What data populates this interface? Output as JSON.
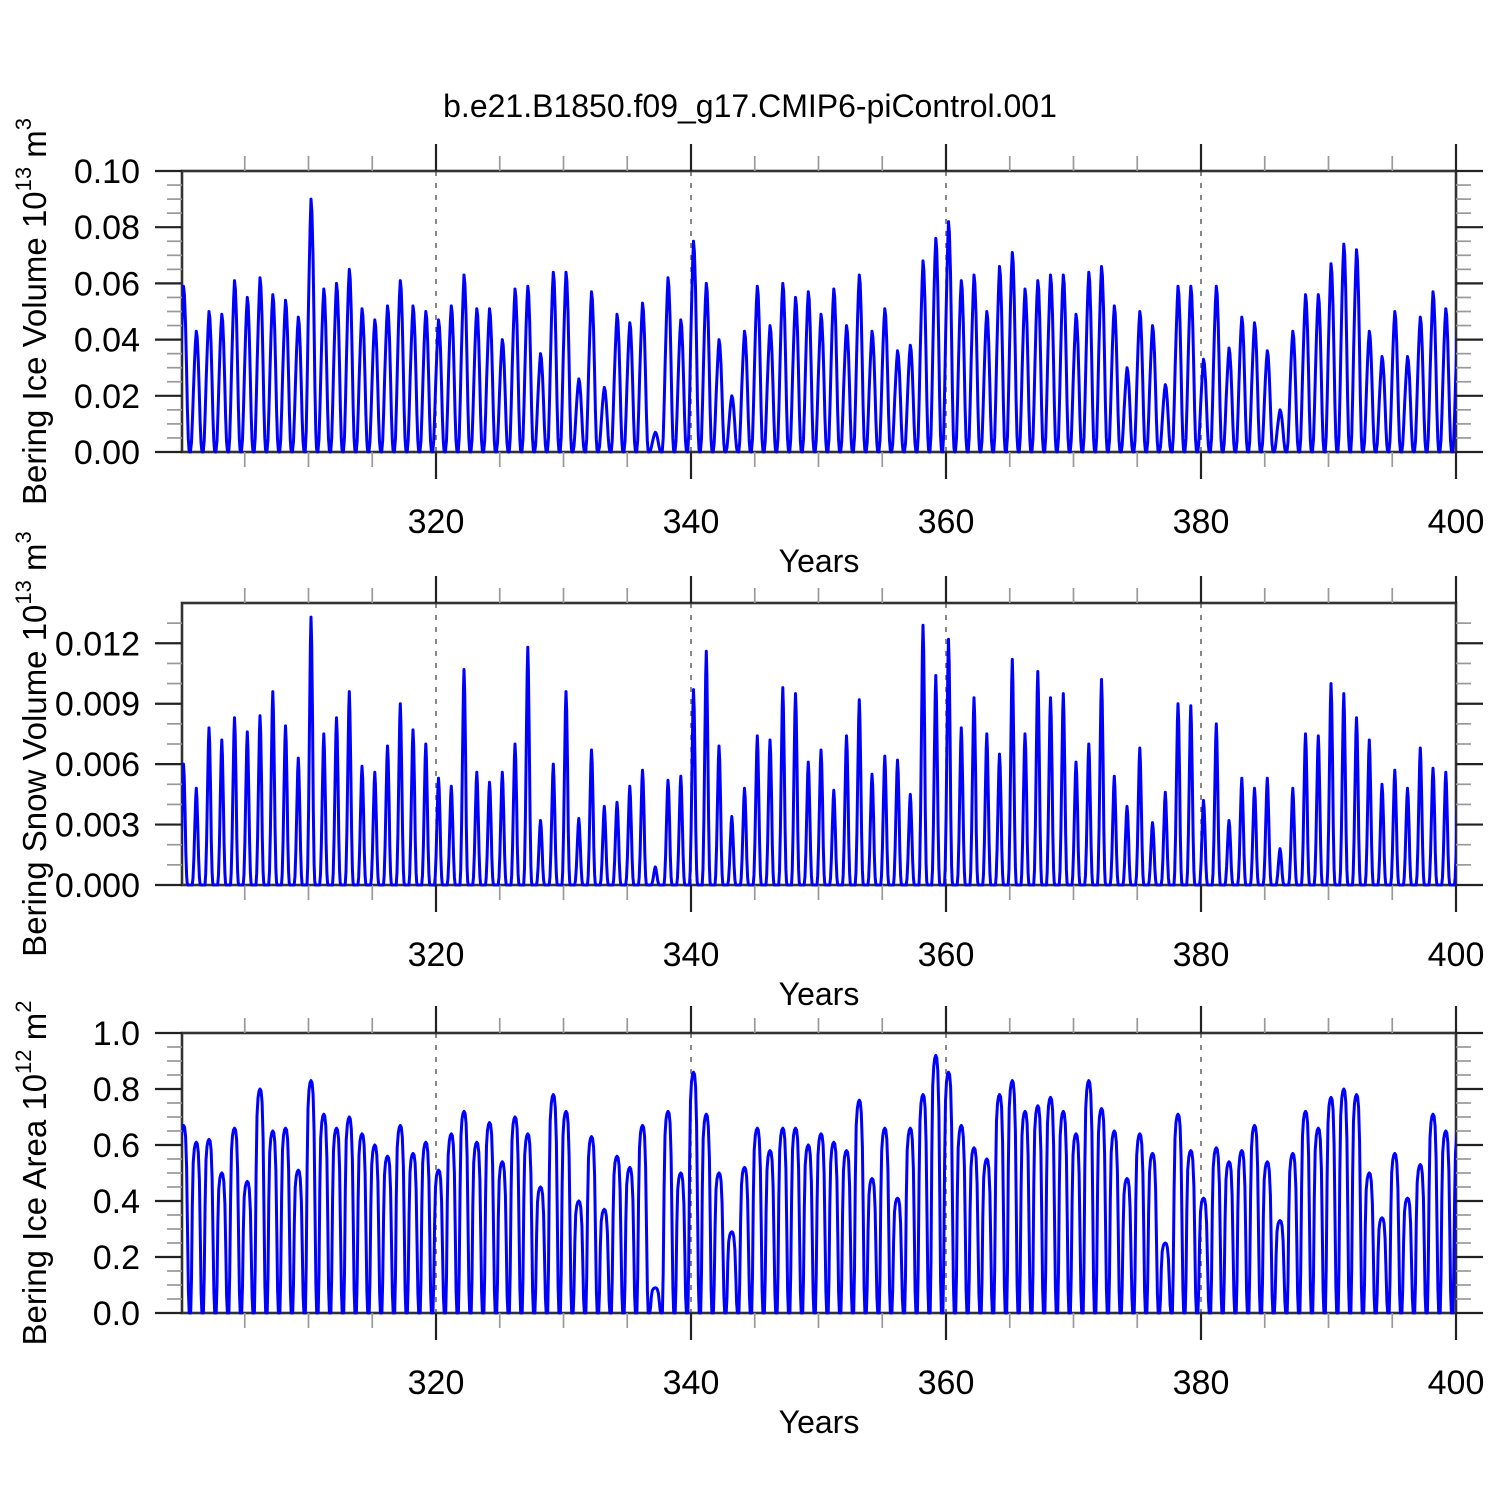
{
  "title": "b.e21.B1850.f09_g17.CMIP6-piControl.001",
  "xlabel": "Years",
  "colors": {
    "line": "#0000ff",
    "frame": "#333333",
    "major_tick": "#222222",
    "minor_tick": "#999999",
    "grid": "#555555",
    "text": "#000000",
    "background": "#ffffff"
  },
  "chart_data": [
    {
      "type": "line",
      "name": "bering-ice-volume",
      "ylabel": "Bering Ice Volume 10^13 m^3",
      "ylabel_parts": [
        "Bering Ice Volume 10",
        {
          "sup": "13"
        },
        " m",
        {
          "sup": "3"
        }
      ],
      "ylim": [
        0,
        0.1
      ],
      "ytick_values": [
        0,
        0.02,
        0.04,
        0.06,
        0.08,
        0.1
      ],
      "ytick_labels": [
        "0.00",
        "0.02",
        "0.04",
        "0.06",
        "0.08",
        "0.10"
      ],
      "y_minor_step": 0.005,
      "xlim": [
        300,
        400
      ],
      "xtick_values": [
        320,
        340,
        360,
        380,
        400
      ],
      "xtick_labels": [
        "320",
        "340",
        "360",
        "380",
        "400"
      ],
      "x_minor_step": 5,
      "grid_years": [
        320,
        340,
        360,
        380
      ],
      "xlabel": "Years",
      "series": {
        "description": "seasonal cycle, annual winter maxima per year, summer minimum ~0",
        "start_year": 300,
        "peak_phase": 0.2,
        "annual_max": [
          0.059,
          0.043,
          0.05,
          0.049,
          0.061,
          0.055,
          0.062,
          0.056,
          0.054,
          0.048,
          0.09,
          0.058,
          0.06,
          0.065,
          0.051,
          0.047,
          0.052,
          0.061,
          0.052,
          0.05,
          0.047,
          0.052,
          0.063,
          0.051,
          0.051,
          0.04,
          0.058,
          0.059,
          0.035,
          0.064,
          0.064,
          0.026,
          0.057,
          0.023,
          0.049,
          0.046,
          0.053,
          0.007,
          0.062,
          0.047,
          0.075,
          0.06,
          0.04,
          0.02,
          0.043,
          0.059,
          0.045,
          0.06,
          0.055,
          0.057,
          0.049,
          0.058,
          0.045,
          0.063,
          0.043,
          0.051,
          0.036,
          0.038,
          0.068,
          0.076,
          0.082,
          0.061,
          0.063,
          0.05,
          0.066,
          0.071,
          0.058,
          0.061,
          0.063,
          0.063,
          0.049,
          0.064,
          0.066,
          0.052,
          0.03,
          0.05,
          0.045,
          0.024,
          0.059,
          0.059,
          0.033,
          0.059,
          0.037,
          0.048,
          0.046,
          0.036,
          0.015,
          0.043,
          0.056,
          0.056,
          0.067,
          0.074,
          0.072,
          0.043,
          0.034,
          0.05,
          0.034,
          0.048,
          0.057,
          0.051
        ],
        "annual_min": 0,
        "seasonal_profile": [
          [
            -0.46,
            0
          ],
          [
            -0.38,
            0.08
          ],
          [
            -0.3,
            0.28
          ],
          [
            -0.22,
            0.52
          ],
          [
            -0.14,
            0.74
          ],
          [
            -0.07,
            0.9
          ],
          [
            0,
            1.0
          ],
          [
            0.07,
            0.95
          ],
          [
            0.15,
            0.78
          ],
          [
            0.23,
            0.52
          ],
          [
            0.3,
            0.26
          ],
          [
            0.37,
            0.08
          ],
          [
            0.43,
            0.015
          ],
          [
            0.48,
            0
          ]
        ]
      }
    },
    {
      "type": "line",
      "name": "bering-snow-volume",
      "ylabel": "Bering Snow Volume 10^13 m^3",
      "ylabel_parts": [
        "Bering Snow Volume 10",
        {
          "sup": "13"
        },
        " m",
        {
          "sup": "3"
        }
      ],
      "ylim": [
        0,
        0.014
      ],
      "ytick_values": [
        0,
        0.003,
        0.006,
        0.009,
        0.012
      ],
      "ytick_labels": [
        "0.000",
        "0.003",
        "0.006",
        "0.009",
        "0.012"
      ],
      "y_minor_step": 0.001,
      "xlim": [
        300,
        400
      ],
      "xtick_values": [
        320,
        340,
        360,
        380,
        400
      ],
      "xtick_labels": [
        "320",
        "340",
        "360",
        "380",
        "400"
      ],
      "x_minor_step": 5,
      "grid_years": [
        320,
        340,
        360,
        380
      ],
      "xlabel": "Years",
      "series": {
        "description": "seasonal cycle, annual winter maxima per year, summer minimum ~0",
        "start_year": 300,
        "peak_phase": 0.2,
        "annual_max": [
          0.006,
          0.0048,
          0.0078,
          0.0072,
          0.0083,
          0.0076,
          0.0084,
          0.0096,
          0.0079,
          0.0063,
          0.0133,
          0.0075,
          0.0083,
          0.0096,
          0.0059,
          0.0056,
          0.0069,
          0.009,
          0.0077,
          0.007,
          0.0053,
          0.0049,
          0.0107,
          0.0056,
          0.0051,
          0.0056,
          0.007,
          0.0118,
          0.0032,
          0.006,
          0.0096,
          0.0033,
          0.0067,
          0.0039,
          0.0041,
          0.0049,
          0.0057,
          0.0009,
          0.0052,
          0.0054,
          0.0097,
          0.0116,
          0.0069,
          0.0034,
          0.0048,
          0.0074,
          0.0072,
          0.0098,
          0.0095,
          0.0061,
          0.0067,
          0.0047,
          0.0074,
          0.0092,
          0.0055,
          0.0064,
          0.0062,
          0.0045,
          0.0129,
          0.0104,
          0.0122,
          0.0078,
          0.0093,
          0.0075,
          0.0065,
          0.0112,
          0.0075,
          0.0106,
          0.0093,
          0.0095,
          0.0061,
          0.007,
          0.0102,
          0.0054,
          0.0039,
          0.0068,
          0.0031,
          0.0046,
          0.009,
          0.0089,
          0.0042,
          0.008,
          0.0032,
          0.0053,
          0.0048,
          0.0053,
          0.0018,
          0.0048,
          0.0075,
          0.0074,
          0.01,
          0.0095,
          0.0083,
          0.0072,
          0.005,
          0.0057,
          0.0048,
          0.0068,
          0.0058,
          0.0056
        ],
        "annual_min": 0,
        "seasonal_profile": [
          [
            -0.32,
            0
          ],
          [
            -0.26,
            0.07
          ],
          [
            -0.19,
            0.28
          ],
          [
            -0.12,
            0.6
          ],
          [
            -0.05,
            0.9
          ],
          [
            0,
            1.0
          ],
          [
            0.05,
            0.9
          ],
          [
            0.12,
            0.6
          ],
          [
            0.18,
            0.28
          ],
          [
            0.24,
            0.08
          ],
          [
            0.29,
            0.015
          ],
          [
            0.33,
            0
          ]
        ]
      }
    },
    {
      "type": "line",
      "name": "bering-ice-area",
      "ylabel": "Bering Ice Area 10^12 m^2",
      "ylabel_parts": [
        "Bering Ice Area 10",
        {
          "sup": "12"
        },
        " m",
        {
          "sup": "2"
        }
      ],
      "ylim": [
        0,
        1.0
      ],
      "ytick_values": [
        0,
        0.2,
        0.4,
        0.6,
        0.8,
        1.0
      ],
      "ytick_labels": [
        "0.0",
        "0.2",
        "0.4",
        "0.6",
        "0.8",
        "1.0"
      ],
      "y_minor_step": 0.05,
      "xlim": [
        300,
        400
      ],
      "xtick_values": [
        320,
        340,
        360,
        380,
        400
      ],
      "xtick_labels": [
        "320",
        "340",
        "360",
        "380",
        "400"
      ],
      "x_minor_step": 5,
      "grid_years": [
        320,
        340,
        360,
        380
      ],
      "xlabel": "Years",
      "series": {
        "description": "seasonal cycle, annual winter maxima per year, summer minimum ~0",
        "start_year": 300,
        "peak_phase": 0.2,
        "annual_max": [
          0.67,
          0.61,
          0.62,
          0.5,
          0.66,
          0.47,
          0.8,
          0.65,
          0.66,
          0.51,
          0.83,
          0.71,
          0.66,
          0.7,
          0.64,
          0.6,
          0.56,
          0.67,
          0.57,
          0.61,
          0.51,
          0.64,
          0.72,
          0.61,
          0.68,
          0.54,
          0.7,
          0.64,
          0.45,
          0.78,
          0.72,
          0.4,
          0.63,
          0.37,
          0.56,
          0.52,
          0.67,
          0.09,
          0.72,
          0.5,
          0.86,
          0.71,
          0.5,
          0.29,
          0.52,
          0.66,
          0.58,
          0.66,
          0.66,
          0.6,
          0.64,
          0.61,
          0.58,
          0.76,
          0.48,
          0.66,
          0.41,
          0.66,
          0.78,
          0.92,
          0.86,
          0.67,
          0.59,
          0.55,
          0.78,
          0.83,
          0.72,
          0.74,
          0.77,
          0.72,
          0.64,
          0.83,
          0.73,
          0.65,
          0.48,
          0.64,
          0.57,
          0.25,
          0.71,
          0.58,
          0.41,
          0.59,
          0.54,
          0.58,
          0.67,
          0.54,
          0.33,
          0.57,
          0.72,
          0.66,
          0.77,
          0.8,
          0.78,
          0.5,
          0.34,
          0.57,
          0.41,
          0.53,
          0.71,
          0.65
        ],
        "annual_min": 0,
        "seasonal_profile": [
          [
            -0.44,
            0
          ],
          [
            -0.38,
            0.2
          ],
          [
            -0.31,
            0.62
          ],
          [
            -0.24,
            0.88
          ],
          [
            -0.16,
            0.96
          ],
          [
            -0.08,
            0.99
          ],
          [
            0,
            1.0
          ],
          [
            0.08,
            0.99
          ],
          [
            0.16,
            0.94
          ],
          [
            0.24,
            0.78
          ],
          [
            0.31,
            0.45
          ],
          [
            0.38,
            0.12
          ],
          [
            0.44,
            0
          ]
        ]
      }
    }
  ]
}
